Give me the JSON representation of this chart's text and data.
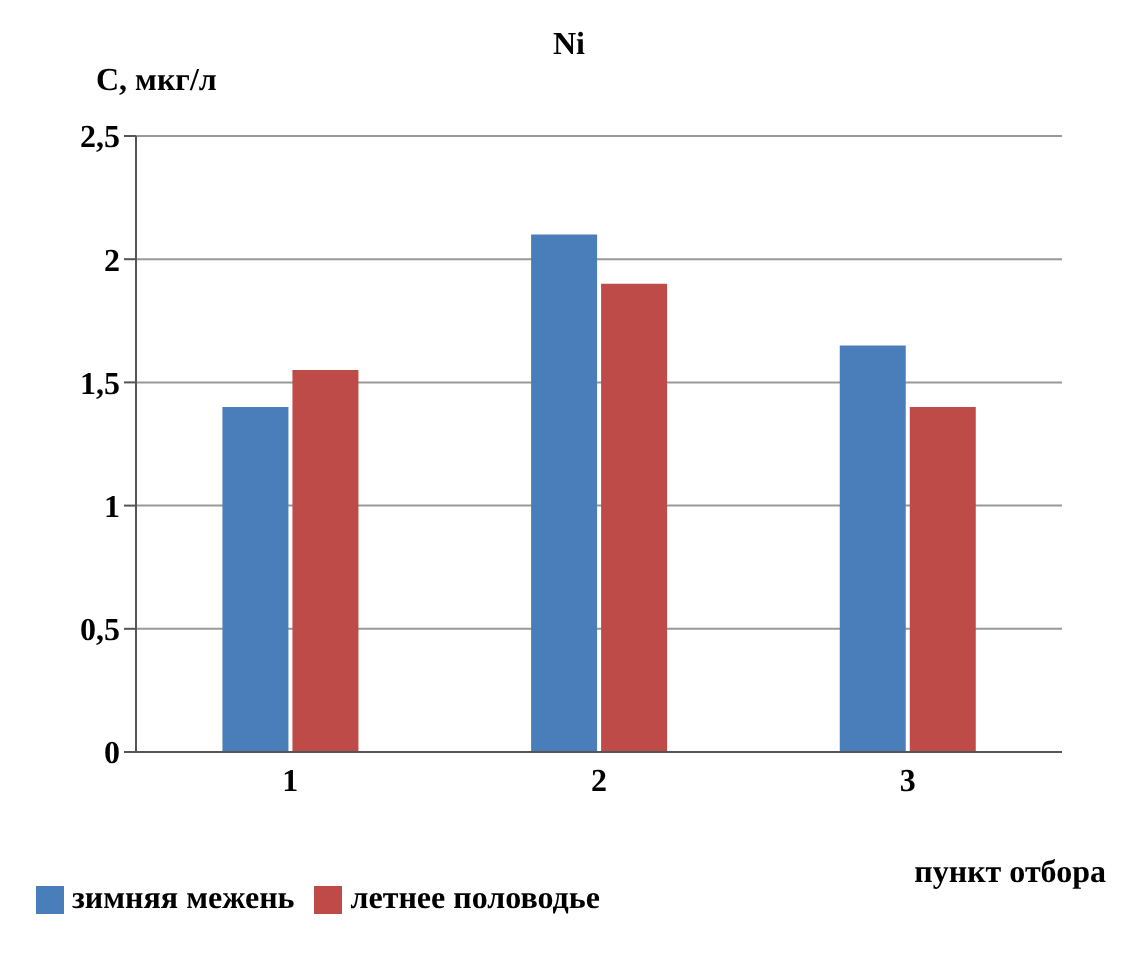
{
  "chart_data": {
    "type": "bar",
    "title": "Ni",
    "ylabel": "С, мкг/л",
    "xlabel": "пункт отбора",
    "categories": [
      "1",
      "2",
      "3"
    ],
    "series": [
      {
        "name": "зимняя межень",
        "color": "#4a7ebb",
        "values": [
          1.4,
          2.1,
          1.65
        ]
      },
      {
        "name": "летнее половодье",
        "color": "#be4b48",
        "values": [
          1.55,
          1.9,
          1.4
        ]
      }
    ],
    "ylim": [
      0,
      2.5
    ],
    "yticks": [
      0,
      {
        "value": 0.5,
        "label": "0,5"
      },
      1,
      {
        "value": 1.5,
        "label": "1,5"
      },
      2,
      {
        "value": 2.5,
        "label": "2,5"
      }
    ],
    "grid": "y",
    "legend": "bottom"
  }
}
